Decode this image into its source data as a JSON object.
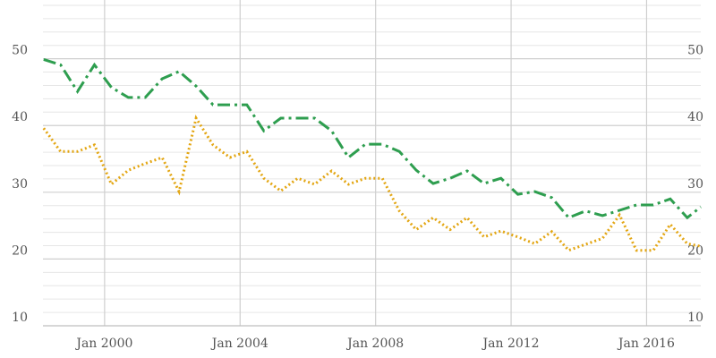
{
  "chart_data": {
    "type": "line",
    "x": [
      1998.2,
      1998.7,
      1999.2,
      1999.7,
      2000.2,
      2000.7,
      2001.2,
      2001.7,
      2002.2,
      2002.7,
      2003.2,
      2003.7,
      2004.2,
      2004.7,
      2005.2,
      2005.7,
      2006.2,
      2006.7,
      2007.2,
      2007.7,
      2008.2,
      2008.7,
      2009.2,
      2009.7,
      2010.2,
      2010.7,
      2011.2,
      2011.7,
      2012.2,
      2012.7,
      2013.2,
      2013.7,
      2014.2,
      2014.7,
      2015.2,
      2015.7,
      2016.2,
      2016.7,
      2017.2,
      2017.6
    ],
    "series": [
      {
        "color": "#2e9e4f",
        "dash": "14 5 3 5",
        "values": [
          49.9,
          49.1,
          45.1,
          49.1,
          45.7,
          44.2,
          44.2,
          47.0,
          48.1,
          45.9,
          43.1,
          43.1,
          43.1,
          39.2,
          41.1,
          41.1,
          41.1,
          39.2,
          35.2,
          37.2,
          37.2,
          36.1,
          33.3,
          31.3,
          32.1,
          33.2,
          31.3,
          32.1,
          29.7,
          30.1,
          29.2,
          26.2,
          27.2,
          26.5,
          27.3,
          28.1,
          28.1,
          29.0,
          26.2,
          27.8
        ]
      },
      {
        "color": "#e3a612",
        "dash": "2 3",
        "values": [
          39.6,
          36.1,
          36.1,
          37.1,
          31.2,
          33.3,
          34.3,
          35.2,
          30.1,
          41.1,
          37.1,
          35.2,
          36.1,
          32.1,
          30.2,
          32.1,
          31.2,
          33.2,
          31.2,
          32.1,
          32.1,
          27.2,
          24.4,
          26.2,
          24.4,
          26.2,
          23.3,
          24.2,
          23.3,
          22.3,
          24.1,
          21.3,
          22.2,
          23.1,
          26.6,
          21.3,
          21.3,
          25.2,
          22.3,
          21.9
        ]
      }
    ],
    "xlim": [
      1998.18,
      2017.6
    ],
    "xticks": [
      {
        "value": 2000,
        "label": "Jan 2000"
      },
      {
        "value": 2004,
        "label": "Jan 2004"
      },
      {
        "value": 2008,
        "label": "Jan 2008"
      },
      {
        "value": 2012,
        "label": "Jan 2012"
      },
      {
        "value": 2016,
        "label": "Jan 2016"
      }
    ],
    "ylim": [
      10,
      58.8
    ],
    "yticks": [
      10,
      20,
      30,
      40,
      50
    ],
    "yticks_minor": [
      12,
      14,
      16,
      18,
      22,
      24,
      26,
      28,
      32,
      34,
      36,
      38,
      42,
      44,
      46,
      48,
      52,
      54,
      56,
      58
    ],
    "y2lim": [
      10,
      58.8
    ],
    "y2ticks": [
      10,
      20,
      30,
      40,
      50
    ],
    "grid": true
  }
}
